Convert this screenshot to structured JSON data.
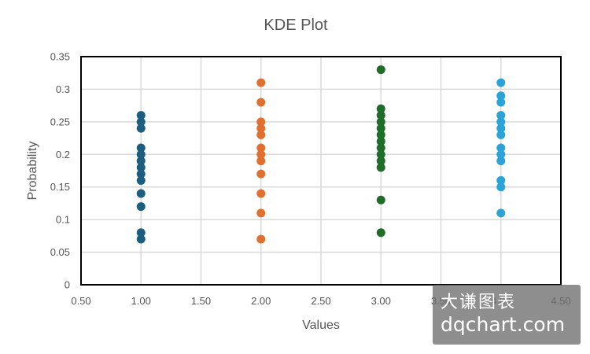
{
  "chart_data": {
    "type": "scatter",
    "title": "KDE Plot",
    "xlabel": "Values",
    "ylabel": "Probability",
    "xlim": [
      0.5,
      4.5
    ],
    "ylim": [
      0,
      0.35
    ],
    "x_ticks": [
      "0.50",
      "1.00",
      "1.50",
      "2.00",
      "2.50",
      "3.00",
      "3.50",
      "4.00",
      "4.50"
    ],
    "y_ticks": [
      "0",
      "0.05",
      "0.1",
      "0.15",
      "0.2",
      "0.25",
      "0.3",
      "0.35"
    ],
    "grid": true,
    "legend": "none",
    "series": [
      {
        "color": "#1b5e80",
        "x": 1.0,
        "values": [
          0.07,
          0.08,
          0.12,
          0.14,
          0.16,
          0.17,
          0.18,
          0.19,
          0.2,
          0.21,
          0.24,
          0.25,
          0.26
        ]
      },
      {
        "color": "#e07030",
        "x": 2.0,
        "values": [
          0.07,
          0.11,
          0.14,
          0.17,
          0.19,
          0.2,
          0.21,
          0.23,
          0.24,
          0.25,
          0.28,
          0.31
        ]
      },
      {
        "color": "#1e6e2a",
        "x": 3.0,
        "values": [
          0.08,
          0.13,
          0.18,
          0.19,
          0.2,
          0.21,
          0.22,
          0.23,
          0.24,
          0.25,
          0.26,
          0.27,
          0.33
        ]
      },
      {
        "color": "#2aa3d8",
        "x": 4.0,
        "values": [
          0.11,
          0.15,
          0.16,
          0.19,
          0.2,
          0.21,
          0.23,
          0.24,
          0.25,
          0.26,
          0.28,
          0.29,
          0.31
        ]
      }
    ]
  },
  "watermark": {
    "line1": "大谦图表",
    "line2": "dqchart.com"
  }
}
